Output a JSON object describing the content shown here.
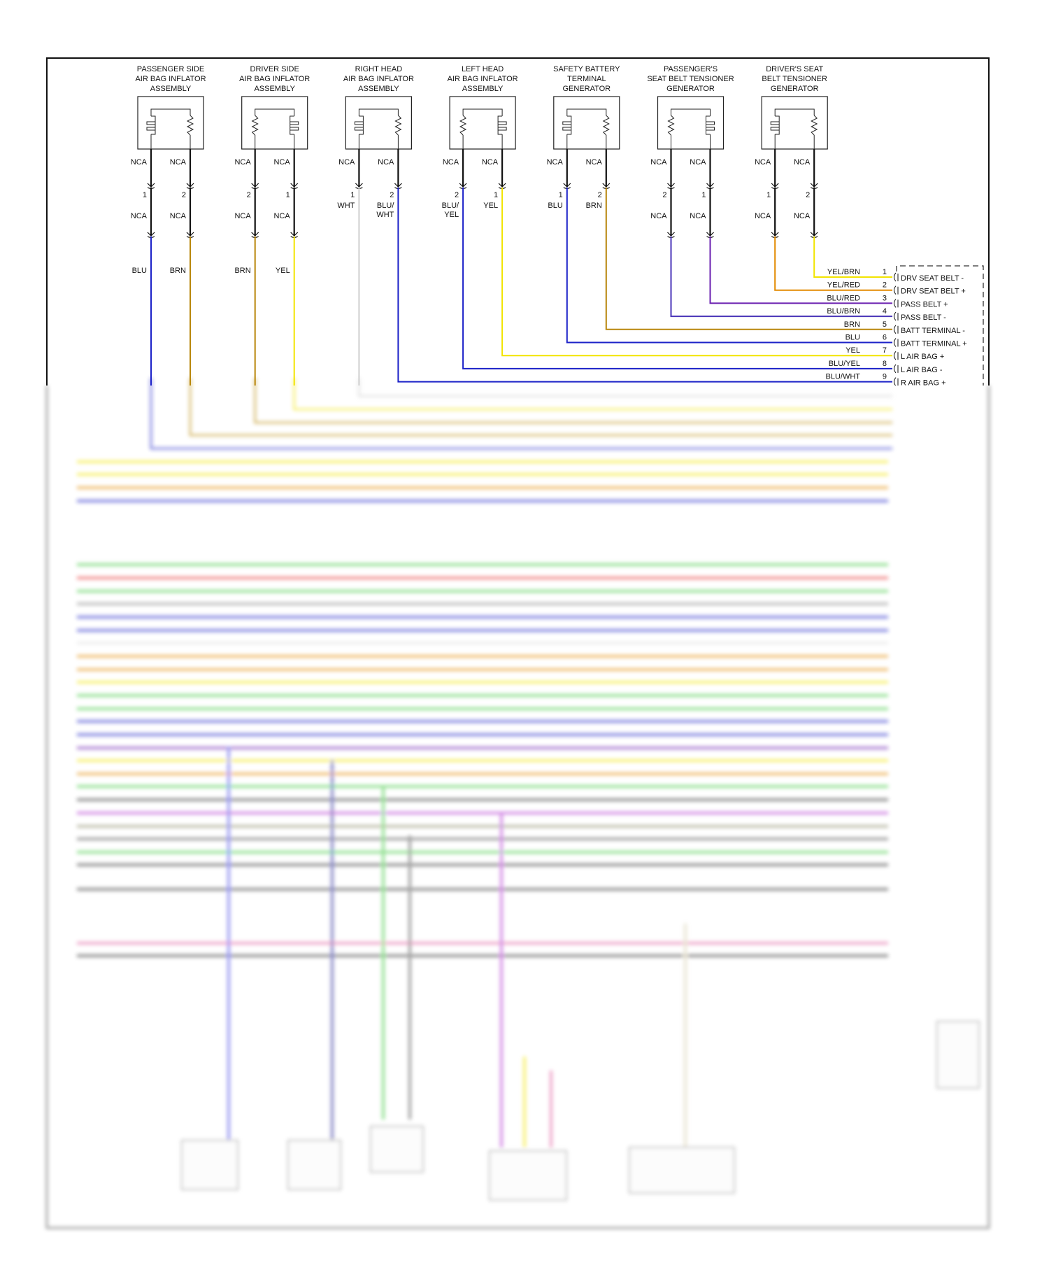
{
  "wire_colors": {
    "BLK": "#111111",
    "BLU": "#1c22c8",
    "BRN": "#b8860b",
    "YEL": "#f2e400",
    "WHT": "#cfcfcf",
    "PUR": "#6a1fb0",
    "ORG": "#e38a00",
    "BLU_PUR": "#4a35b8"
  },
  "components": [
    {
      "title": [
        "PASSENGER SIDE",
        "AIR BAG INFLATOR",
        "ASSEMBLY"
      ],
      "symbols": [
        "squib",
        "resistor"
      ],
      "top_labels": [
        "NCA",
        "NCA"
      ],
      "pins": [
        "1",
        "2"
      ],
      "mid_labels": [
        "NCA",
        "NCA"
      ],
      "wire_labels": [
        [
          "BLU"
        ],
        [
          "BRN"
        ]
      ],
      "wire_colors": [
        "BLU",
        "BRN"
      ],
      "double_connector": true
    },
    {
      "title": [
        "DRIVER SIDE",
        "AIR BAG INFLATOR",
        "ASSEMBLY"
      ],
      "symbols": [
        "resistor",
        "squib"
      ],
      "top_labels": [
        "NCA",
        "NCA"
      ],
      "pins": [
        "2",
        "1"
      ],
      "mid_labels": [
        "NCA",
        "NCA"
      ],
      "wire_labels": [
        [
          "BRN"
        ],
        [
          "YEL"
        ]
      ],
      "wire_colors": [
        "BRN",
        "YEL"
      ],
      "double_connector": true
    },
    {
      "title": [
        "RIGHT HEAD",
        "AIR BAG INFLATOR",
        "ASSEMBLY"
      ],
      "symbols": [
        "squib",
        "resistor"
      ],
      "top_labels": [
        "NCA",
        "NCA"
      ],
      "pins": [
        "1",
        "2"
      ],
      "wire_labels": [
        [
          "WHT"
        ],
        [
          "BLU/",
          "WHT"
        ]
      ],
      "wire_colors": [
        "WHT",
        "BLU"
      ],
      "double_connector": false
    },
    {
      "title": [
        "LEFT HEAD",
        "AIR BAG INFLATOR",
        "ASSEMBLY"
      ],
      "symbols": [
        "resistor",
        "squib"
      ],
      "top_labels": [
        "NCA",
        "NCA"
      ],
      "pins": [
        "2",
        "1"
      ],
      "wire_labels": [
        [
          "BLU/",
          "YEL"
        ],
        [
          "YEL"
        ]
      ],
      "wire_colors": [
        "BLU",
        "YEL"
      ],
      "double_connector": false
    },
    {
      "title": [
        "SAFETY BATTERY",
        "TERMINAL",
        "GENERATOR"
      ],
      "symbols": [
        "squib",
        "resistor"
      ],
      "top_labels": [
        "NCA",
        "NCA"
      ],
      "pins": [
        "1",
        "2"
      ],
      "wire_labels": [
        [
          "BLU"
        ],
        [
          "BRN"
        ]
      ],
      "wire_colors": [
        "BLU",
        "BRN"
      ],
      "double_connector": false
    },
    {
      "title": [
        "PASSENGER'S",
        "SEAT BELT TENSIONER",
        "GENERATOR"
      ],
      "symbols": [
        "resistor",
        "squib"
      ],
      "top_labels": [
        "NCA",
        "NCA"
      ],
      "pins": [
        "2",
        "1"
      ],
      "mid_labels": [
        "NCA",
        "NCA"
      ],
      "wire_colors": [
        "BLU_PUR",
        "PUR"
      ],
      "double_connector": true
    },
    {
      "title": [
        "DRIVER'S SEAT",
        "BELT TENSIONER",
        "GENERATOR"
      ],
      "symbols": [
        "squib",
        "resistor"
      ],
      "top_labels": [
        "NCA",
        "NCA"
      ],
      "pins": [
        "1",
        "2"
      ],
      "mid_labels": [
        "NCA",
        "NCA"
      ],
      "wire_colors": [
        "ORG",
        "YEL"
      ],
      "double_connector": true
    }
  ],
  "module_connector": {
    "pins": [
      {
        "pin": "1",
        "wire": "YEL/BRN",
        "function": "DRV SEAT BELT -",
        "color": "YEL",
        "from": [
          6,
          1
        ]
      },
      {
        "pin": "2",
        "wire": "YEL/RED",
        "function": "DRV SEAT BELT +",
        "color": "ORG",
        "from": [
          6,
          0
        ]
      },
      {
        "pin": "3",
        "wire": "BLU/RED",
        "function": "PASS BELT +",
        "color": "PUR",
        "from": [
          5,
          1
        ]
      },
      {
        "pin": "4",
        "wire": "BLU/BRN",
        "function": "PASS BELT -",
        "color": "BLU_PUR",
        "from": [
          5,
          0
        ]
      },
      {
        "pin": "5",
        "wire": "BRN",
        "function": "BATT TERMINAL -",
        "color": "BRN",
        "from": [
          4,
          1
        ]
      },
      {
        "pin": "6",
        "wire": "BLU",
        "function": "BATT TERMINAL +",
        "color": "BLU",
        "from": [
          4,
          0
        ]
      },
      {
        "pin": "7",
        "wire": "YEL",
        "function": "L AIR BAG +",
        "color": "YEL",
        "from": [
          3,
          1
        ]
      },
      {
        "pin": "8",
        "wire": "BLU/YEL",
        "function": "L AIR BAG -",
        "color": "BLU",
        "from": [
          3,
          0
        ]
      },
      {
        "pin": "9",
        "wire": "BLU/WHT",
        "function": "R AIR BAG +",
        "color": "BLU",
        "from": [
          2,
          1
        ]
      }
    ]
  },
  "blurred_lines": [
    "#f2e400",
    "#f2e400",
    "#b8860b",
    "#b8860b",
    "#1c22c8",
    "#f2e400",
    "#f2e400",
    "#e38a00",
    "#1c22c8",
    "#3ac83a",
    "#e83030",
    "#3ac83a",
    "#888888",
    "#1c22c8",
    "#1c22c8",
    "#e0e0e0",
    "#e38a00",
    "#e38a00",
    "#f2e400",
    "#3ac83a",
    "#3ac83a",
    "#1c22c8",
    "#1c22c8",
    "#6a1fb0",
    "#f2e400",
    "#e38a00",
    "#e38a00",
    "#1c22c8",
    "#333333",
    "#3ac83a",
    "#333333",
    "#b030d0",
    "#888866",
    "#555555",
    "#3ac83a",
    "#333333",
    "#333333",
    "#e060a0",
    "#333333"
  ]
}
